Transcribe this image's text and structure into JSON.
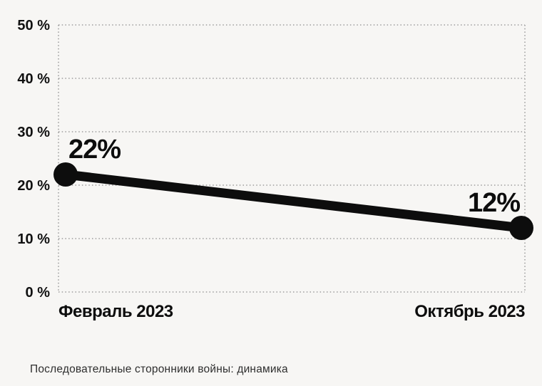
{
  "page": {
    "background": "#f7f6f4"
  },
  "chart_data": {
    "type": "line",
    "title": "",
    "caption": "Последовательные сторонники войны: динамика",
    "categories": [
      "Февраль 2023",
      "Октябрь 2023"
    ],
    "values": [
      22,
      12
    ],
    "point_labels": [
      "22%",
      "12%"
    ],
    "ylim": [
      0,
      50
    ],
    "yticks": [
      0,
      10,
      20,
      30,
      40,
      50
    ],
    "ytick_labels": [
      "0 %",
      "10 %",
      "20 %",
      "30 %",
      "40 %",
      "50 %"
    ],
    "grid": "dotted horizontal lines plus dotted left/right plot borders",
    "legend": "none",
    "line_color": "#0d0d0d",
    "point_color": "#0d0d0d",
    "grid_color": "#8a8a8a",
    "text_color": "#111111"
  }
}
